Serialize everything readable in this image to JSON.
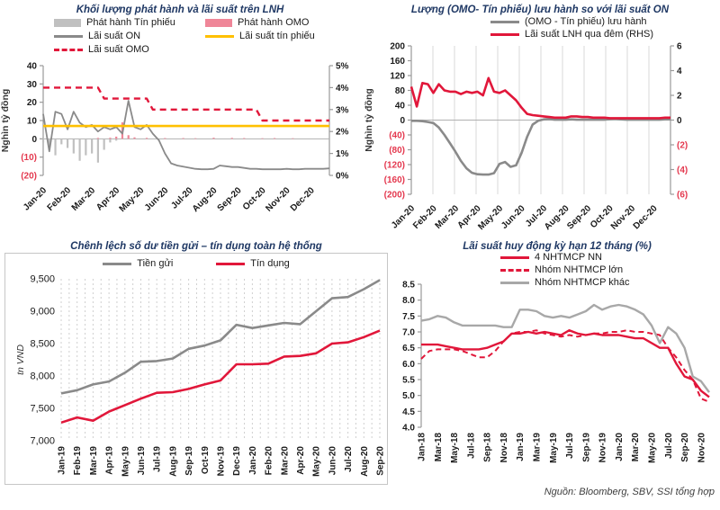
{
  "page": {
    "source": "Nguồn:  Bloomberg, SBV, SSI tổng hợp"
  },
  "colors": {
    "crimson": "#e1173a",
    "pink": "#ef8698",
    "yellow": "#ffc000",
    "gray_line": "#8a8a8a",
    "gray_bar": "#c0c0c0",
    "gray_other": "#a8a8a8",
    "negative_tick": "#e4394f",
    "title_navy": "#1f3864"
  },
  "chart_data": [
    {
      "key": "issuance",
      "type": "combo",
      "title": "Khối lượng phát hành và lãi suất trên LNH",
      "y_axis_title": "Nghìn tỷ đồng",
      "legend": [
        {
          "label": "Phát hành Tín phiếu",
          "swatch": "bar",
          "color": "#c0c0c0"
        },
        {
          "label": "Phát hành OMO",
          "swatch": "bar",
          "color": "#ef8698"
        },
        {
          "label": "Lãi suất ON",
          "swatch": "line",
          "color": "#8a8a8a"
        },
        {
          "label": "Lãi suất tín phiếu",
          "swatch": "line",
          "color": "#ffc000"
        },
        {
          "label": "Lãi suất OMO",
          "swatch": "dash",
          "color": "#e1173a"
        }
      ],
      "x": [
        "Jan-20",
        "Feb-20",
        "Mar-20",
        "Apr-20",
        "May-20",
        "Jun-20",
        "Jul-20",
        "Aug-20",
        "Sep-20",
        "Oct-20",
        "Nov-20",
        "Dec-20"
      ],
      "n": 48,
      "x_label_every": 1,
      "left_axis": {
        "min": -20,
        "max": 40,
        "ticks": [
          40,
          30,
          20,
          10,
          0,
          -10,
          -20
        ]
      },
      "right_axis": {
        "min": 0,
        "max": 5,
        "ticks": [
          5,
          4,
          3,
          2,
          1,
          0
        ],
        "suffix": "%"
      },
      "series": [
        {
          "name": "Phát hành Tín phiếu",
          "type": "bar",
          "axis": "left",
          "color": "#c0c0c0",
          "values": [
            -2,
            -6,
            -9,
            -3,
            -5,
            -8,
            -12,
            -9,
            -8,
            -13,
            -6,
            -2,
            -1,
            0,
            0,
            0,
            0,
            0,
            0,
            0,
            0,
            0,
            0,
            0,
            0,
            0,
            0,
            0,
            0,
            0,
            0,
            0,
            0,
            0,
            0,
            0,
            0,
            0,
            0,
            0,
            0,
            0,
            0,
            0,
            0,
            0,
            0,
            0
          ]
        },
        {
          "name": "Phát hành OMO",
          "type": "bar",
          "axis": "left",
          "color": "#ef8698",
          "values": [
            0,
            0,
            0,
            0,
            0,
            0,
            0,
            0,
            0,
            0.5,
            0,
            0.6,
            1.2,
            9,
            2,
            0.8,
            0,
            0.5,
            0,
            0,
            0.4,
            0,
            0,
            0.4,
            0,
            0.3,
            0,
            0,
            0.6,
            0,
            0,
            0.5,
            0,
            0.4,
            0,
            0,
            0.3,
            0,
            0.4,
            0,
            0,
            0.3,
            0,
            0,
            0,
            0,
            0,
            0
          ]
        },
        {
          "name": "Lãi suất ON",
          "type": "line",
          "axis": "right",
          "color": "#8a8a8a",
          "width": 1.8,
          "values": [
            2.8,
            1.1,
            2.9,
            2.8,
            2.1,
            2.9,
            2.4,
            2.2,
            2.3,
            2.0,
            2.2,
            2.1,
            2.2,
            1.9,
            3.4,
            2.2,
            2.1,
            2.3,
            1.9,
            1.6,
            1.0,
            0.55,
            0.45,
            0.4,
            0.35,
            0.3,
            0.28,
            0.28,
            0.3,
            0.45,
            0.42,
            0.38,
            0.38,
            0.34,
            0.3,
            0.3,
            0.28,
            0.28,
            0.28,
            0.28,
            0.3,
            0.28,
            0.28,
            0.3,
            0.3,
            0.3,
            0.3,
            0.32
          ]
        },
        {
          "name": "Lãi suất tín phiếu",
          "type": "line",
          "axis": "right",
          "color": "#ffc000",
          "width": 2.6,
          "const": 2.25
        },
        {
          "name": "Lãi suất OMO",
          "type": "line",
          "axis": "right",
          "color": "#e1173a",
          "width": 2.4,
          "dash": "7 5",
          "values": [
            4,
            4,
            4,
            4,
            4,
            4,
            4,
            4,
            4,
            4,
            3.5,
            3.5,
            3.5,
            3.5,
            3.5,
            3.5,
            3.5,
            3.5,
            3,
            3,
            3,
            3,
            3,
            3,
            3,
            3,
            3,
            3,
            3,
            3,
            3,
            3,
            3,
            3,
            3,
            3,
            2.5,
            2.5,
            2.5,
            2.5,
            2.5,
            2.5,
            2.5,
            2.5,
            2.5,
            2.5,
            2.5,
            2.5
          ]
        }
      ]
    },
    {
      "key": "omo_net",
      "type": "combo",
      "title": "Lượng (OMO- Tín phiếu) lưu hành so với lãi suất ON",
      "y_axis_title": "Nghìn tỷ đồng",
      "legend": [
        {
          "label": "(OMO - Tín phiếu) lưu hành",
          "swatch": "line",
          "color": "#8a8a8a"
        },
        {
          "label": "Lãi suất LNH qua đêm (RHS)",
          "swatch": "line",
          "color": "#e1173a"
        }
      ],
      "x": [
        "Jan-20",
        "Feb-20",
        "Mar-20",
        "Apr-20",
        "May-20",
        "Jun-20",
        "Jul-20",
        "Aug-20",
        "Sep-20",
        "Oct-20",
        "Nov-20",
        "Dec-20"
      ],
      "n": 48,
      "x_label_every": 1,
      "left_axis": {
        "min": -200,
        "max": 200,
        "ticks": [
          200,
          160,
          120,
          80,
          40,
          0,
          -40,
          -80,
          -120,
          -160,
          -200
        ]
      },
      "right_axis": {
        "min": -6,
        "max": 6,
        "ticks": [
          6,
          4,
          2,
          0,
          -2,
          -4,
          -6
        ]
      },
      "series": [
        {
          "name": "(OMO - Tín phiếu) lưu hành",
          "type": "line",
          "axis": "left",
          "color": "#8a8a8a",
          "width": 2.6,
          "values": [
            -2,
            -2,
            -3,
            -5,
            -8,
            -20,
            -40,
            -62,
            -85,
            -110,
            -130,
            -142,
            -146,
            -147,
            -147,
            -143,
            -118,
            -113,
            -126,
            -122,
            -88,
            -45,
            -12,
            -2,
            2,
            3,
            1,
            1,
            1,
            2,
            1,
            1,
            1,
            1,
            1,
            1,
            3,
            4,
            2,
            1,
            1,
            1,
            1,
            1,
            1,
            1,
            2,
            2
          ]
        },
        {
          "name": "Lãi suất LNH qua đêm (RHS)",
          "type": "line",
          "axis": "right",
          "color": "#e1173a",
          "width": 2.6,
          "values": [
            2.7,
            1.1,
            3.0,
            2.9,
            2.2,
            2.9,
            2.4,
            2.3,
            2.3,
            2.1,
            2.3,
            2.2,
            2.3,
            2.0,
            3.4,
            2.3,
            2.2,
            2.4,
            2.0,
            1.6,
            1.0,
            0.5,
            0.4,
            0.35,
            0.3,
            0.25,
            0.2,
            0.2,
            0.2,
            0.3,
            0.3,
            0.25,
            0.25,
            0.2,
            0.2,
            0.2,
            0.15,
            0.15,
            0.15,
            0.15,
            0.15,
            0.15,
            0.15,
            0.15,
            0.15,
            0.15,
            0.2,
            0.2
          ]
        }
      ]
    },
    {
      "key": "deposit_credit",
      "type": "line",
      "title": "Chênh lệch số dư tiền gửi – tín dụng toàn hệ thống",
      "y_axis_title": "tn VND",
      "legend": [
        {
          "label": "Tiền gửi",
          "swatch": "line",
          "color": "#8a8a8a"
        },
        {
          "label": "Tín dụng",
          "swatch": "line",
          "color": "#e1173a"
        }
      ],
      "x": [
        "Jan-19",
        "Feb-19",
        "Mar-19",
        "Apr-19",
        "May-19",
        "Jun-19",
        "Jul-19",
        "Aug-19",
        "Sep-19",
        "Oct-19",
        "Nov-19",
        "Dec-19",
        "Jan-20",
        "Feb-20",
        "Mar-20",
        "Apr-20",
        "May-20",
        "Jun-20",
        "Jul-20",
        "Aug-20",
        "Sep-20"
      ],
      "n": 21,
      "x_label_every": 1,
      "left_axis": {
        "min": 7000,
        "max": 9500,
        "ticks": [
          9500,
          9000,
          8500,
          8000,
          7500,
          7000
        ],
        "fmt": "comma"
      },
      "series": [
        {
          "name": "Tiền gửi",
          "type": "line",
          "axis": "left",
          "color": "#8a8a8a",
          "width": 2.6,
          "values": [
            7730,
            7780,
            7870,
            7915,
            8050,
            8220,
            8230,
            8270,
            8420,
            8470,
            8550,
            8790,
            8740,
            8780,
            8820,
            8800,
            9000,
            9200,
            9220,
            9340,
            9480
          ]
        },
        {
          "name": "Tín dụng",
          "type": "line",
          "axis": "left",
          "color": "#e1173a",
          "width": 2.6,
          "values": [
            7280,
            7360,
            7310,
            7450,
            7550,
            7650,
            7740,
            7750,
            7800,
            7870,
            7930,
            8180,
            8180,
            8190,
            8300,
            8310,
            8350,
            8500,
            8520,
            8600,
            8700
          ]
        }
      ]
    },
    {
      "key": "deposit_rate",
      "type": "line",
      "title": "Lãi suất huy động kỳ hạn 12 tháng (%)",
      "y_axis_title": "",
      "legend": [
        {
          "label": "4 NHTMCP NN",
          "swatch": "line",
          "color": "#e1173a"
        },
        {
          "label": "Nhóm NHTMCP lớn",
          "swatch": "dash",
          "color": "#e1173a"
        },
        {
          "label": "Nhóm NHTMCP khác",
          "swatch": "line",
          "color": "#a8a8a8"
        }
      ],
      "x": [
        "Jan-18",
        "Feb-18",
        "Mar-18",
        "Apr-18",
        "May-18",
        "Jun-18",
        "Jul-18",
        "Aug-18",
        "Sep-18",
        "Oct-18",
        "Nov-18",
        "Dec-18",
        "Jan-19",
        "Feb-19",
        "Mar-19",
        "Apr-19",
        "May-19",
        "Jun-19",
        "Jul-19",
        "Aug-19",
        "Sep-19",
        "Oct-19",
        "Nov-19",
        "Dec-19",
        "Jan-20",
        "Feb-20",
        "Mar-20",
        "Apr-20",
        "May-20",
        "Jun-20",
        "Jul-20",
        "Aug-20",
        "Sep-20",
        "Oct-20",
        "Nov-20",
        "Dec-20"
      ],
      "n": 36,
      "x_label_every": 2,
      "left_axis": {
        "min": 4.0,
        "max": 8.5,
        "ticks": [
          8.5,
          8.0,
          7.5,
          7.0,
          6.5,
          6.0,
          5.5,
          5.0,
          4.5,
          4.0
        ],
        "fmt": "fixed1"
      },
      "series": [
        {
          "name": "4 NHTMCP NN",
          "type": "line",
          "axis": "left",
          "color": "#e1173a",
          "width": 2.4,
          "values": [
            6.6,
            6.6,
            6.6,
            6.55,
            6.5,
            6.45,
            6.45,
            6.45,
            6.5,
            6.6,
            6.7,
            6.95,
            6.95,
            7.0,
            6.95,
            7.0,
            6.95,
            6.9,
            7.05,
            6.95,
            6.9,
            6.95,
            6.9,
            6.9,
            6.9,
            6.85,
            6.8,
            6.8,
            6.65,
            6.5,
            6.5,
            6.0,
            5.6,
            5.5,
            5.15,
            4.95
          ]
        },
        {
          "name": "Nhóm NHTMCP lớn",
          "type": "line",
          "axis": "left",
          "color": "#e1173a",
          "width": 2,
          "dash": "6 4",
          "values": [
            6.15,
            6.4,
            6.45,
            6.45,
            6.45,
            6.4,
            6.3,
            6.2,
            6.2,
            6.4,
            6.7,
            6.95,
            7.0,
            7.0,
            7.05,
            6.95,
            6.9,
            6.85,
            6.9,
            6.85,
            6.9,
            6.95,
            6.95,
            7.0,
            7.0,
            7.05,
            7.0,
            7.0,
            6.95,
            6.9,
            6.5,
            6.2,
            5.8,
            5.5,
            4.9,
            4.8
          ]
        },
        {
          "name": "Nhóm NHTMCP khác",
          "type": "line",
          "axis": "left",
          "color": "#a8a8a8",
          "width": 2.4,
          "values": [
            7.35,
            7.4,
            7.5,
            7.45,
            7.3,
            7.2,
            7.2,
            7.2,
            7.2,
            7.2,
            7.15,
            7.15,
            7.7,
            7.7,
            7.65,
            7.5,
            7.45,
            7.5,
            7.45,
            7.55,
            7.65,
            7.85,
            7.7,
            7.8,
            7.85,
            7.8,
            7.7,
            7.55,
            7.2,
            6.65,
            7.15,
            6.95,
            6.5,
            5.6,
            5.45,
            5.1
          ]
        }
      ]
    }
  ]
}
